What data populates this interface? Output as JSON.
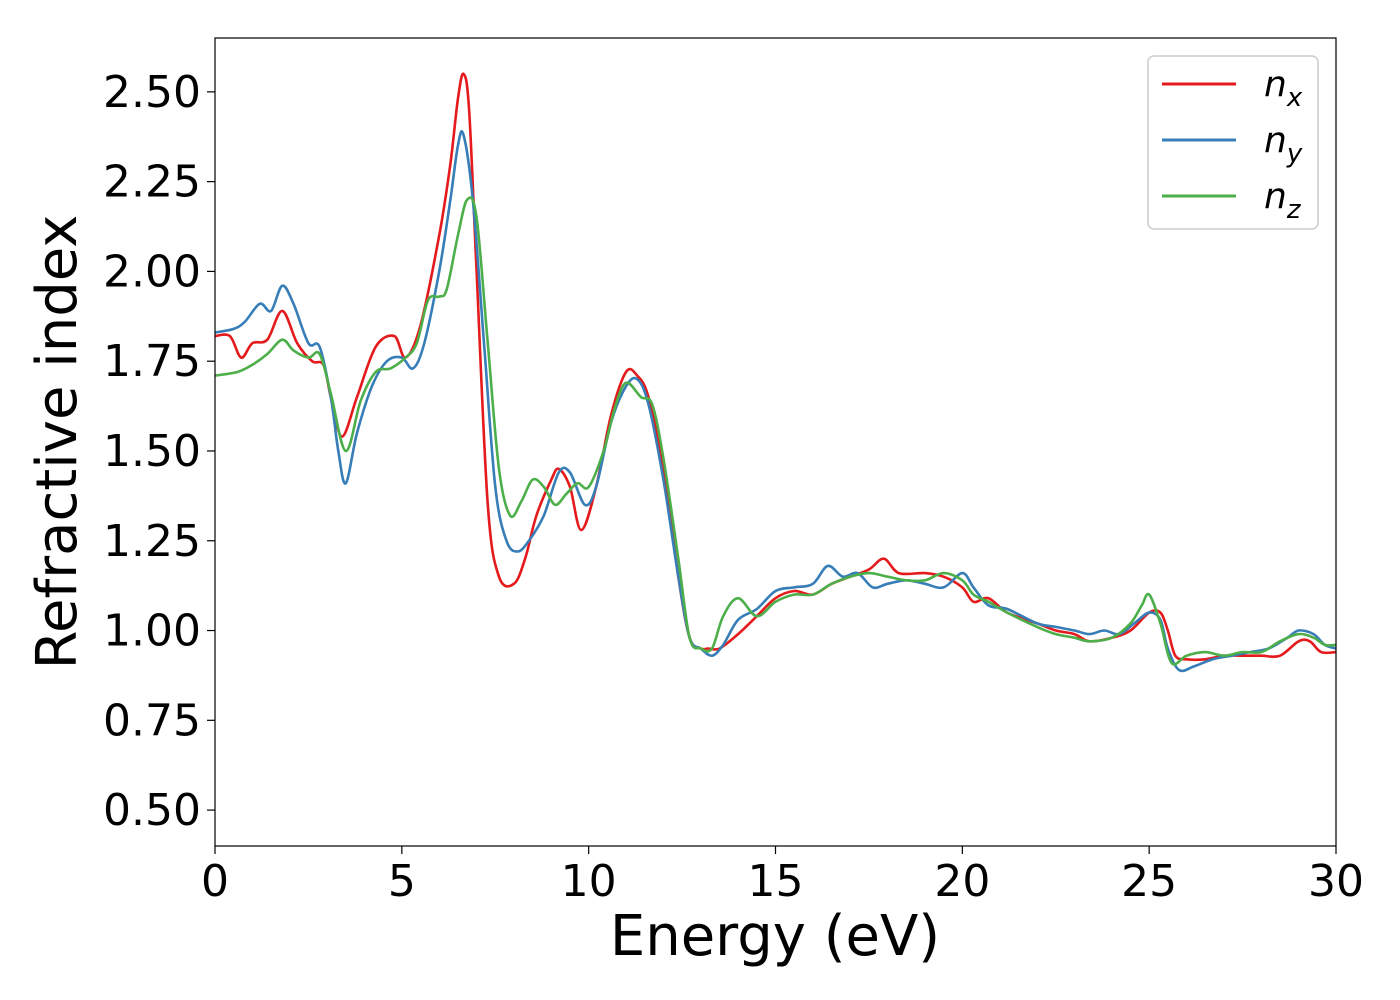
{
  "chart_data": {
    "type": "line",
    "title": "",
    "xlabel": "Energy (eV)",
    "ylabel": "Refractive index",
    "xlim": [
      0,
      30
    ],
    "ylim": [
      0.4,
      2.65
    ],
    "xticks": [
      0,
      5,
      10,
      15,
      20,
      25,
      30
    ],
    "xtick_labels": [
      "0",
      "5",
      "10",
      "15",
      "20",
      "25",
      "30"
    ],
    "yticks": [
      0.5,
      0.75,
      1.0,
      1.25,
      1.5,
      1.75,
      2.0,
      2.25,
      2.5
    ],
    "ytick_labels": [
      "0.50",
      "0.75",
      "1.00",
      "1.25",
      "1.50",
      "1.75",
      "2.00",
      "2.25",
      "2.50"
    ],
    "grid": false,
    "legend_position": "top-right",
    "series": [
      {
        "name": "n",
        "subscript": "x",
        "color": "#e41a1c",
        "x": [
          0,
          0.4,
          0.7,
          1.0,
          1.4,
          1.8,
          2.2,
          2.6,
          2.9,
          3.1,
          3.4,
          3.8,
          4.3,
          4.8,
          5.1,
          5.5,
          6.0,
          6.3,
          6.5,
          6.65,
          6.8,
          7.0,
          7.3,
          7.6,
          8.0,
          8.3,
          8.6,
          9.0,
          9.2,
          9.5,
          9.8,
          10.2,
          10.6,
          11.0,
          11.3,
          11.6,
          12.0,
          12.4,
          12.7,
          13.0,
          13.2,
          13.5,
          14.0,
          14.5,
          15.0,
          15.5,
          16.0,
          16.5,
          17.0,
          17.5,
          17.9,
          18.3,
          19.0,
          19.5,
          20.0,
          20.3,
          20.7,
          21.2,
          22.0,
          22.5,
          23.0,
          23.4,
          24.0,
          24.5,
          25.0,
          25.3,
          25.5,
          25.7,
          26.0,
          26.5,
          27.0,
          27.5,
          28.0,
          28.5,
          29.0,
          29.3,
          29.6,
          30.0
        ],
        "values": [
          1.82,
          1.82,
          1.76,
          1.8,
          1.81,
          1.89,
          1.8,
          1.75,
          1.74,
          1.65,
          1.54,
          1.65,
          1.79,
          1.82,
          1.76,
          1.85,
          2.1,
          2.3,
          2.48,
          2.55,
          2.45,
          2.0,
          1.35,
          1.15,
          1.13,
          1.2,
          1.32,
          1.42,
          1.45,
          1.4,
          1.28,
          1.4,
          1.6,
          1.72,
          1.71,
          1.65,
          1.45,
          1.15,
          0.98,
          0.95,
          0.95,
          0.95,
          0.99,
          1.04,
          1.09,
          1.11,
          1.1,
          1.13,
          1.15,
          1.17,
          1.2,
          1.16,
          1.16,
          1.15,
          1.12,
          1.08,
          1.09,
          1.05,
          1.02,
          1.0,
          0.99,
          0.97,
          0.98,
          1.0,
          1.05,
          1.05,
          1.0,
          0.93,
          0.92,
          0.92,
          0.93,
          0.93,
          0.93,
          0.93,
          0.97,
          0.97,
          0.94,
          0.94
        ]
      },
      {
        "name": "n",
        "subscript": "y",
        "color": "#377eb8",
        "x": [
          0,
          0.5,
          0.8,
          1.2,
          1.5,
          1.8,
          2.1,
          2.5,
          2.8,
          3.1,
          3.3,
          3.5,
          3.8,
          4.2,
          4.6,
          5.0,
          5.3,
          5.6,
          6.0,
          6.3,
          6.5,
          6.65,
          6.9,
          7.2,
          7.5,
          7.8,
          8.1,
          8.4,
          8.8,
          9.2,
          9.5,
          9.9,
          10.2,
          10.6,
          11.0,
          11.3,
          11.6,
          12.0,
          12.4,
          12.7,
          13.0,
          13.3,
          13.6,
          14.0,
          14.5,
          15.0,
          15.5,
          16.0,
          16.4,
          16.8,
          17.2,
          17.6,
          18.0,
          18.5,
          19.0,
          19.5,
          20.0,
          20.3,
          20.7,
          21.2,
          22.0,
          22.5,
          23.0,
          23.4,
          23.8,
          24.2,
          24.6,
          25.0,
          25.3,
          25.5,
          25.8,
          26.2,
          26.7,
          27.2,
          27.7,
          28.2,
          28.7,
          29.0,
          29.4,
          29.7,
          30.0
        ],
        "values": [
          1.83,
          1.84,
          1.86,
          1.91,
          1.89,
          1.96,
          1.91,
          1.8,
          1.79,
          1.65,
          1.5,
          1.41,
          1.55,
          1.68,
          1.75,
          1.76,
          1.73,
          1.8,
          2.0,
          2.2,
          2.35,
          2.38,
          2.2,
          1.8,
          1.4,
          1.25,
          1.22,
          1.25,
          1.32,
          1.44,
          1.44,
          1.35,
          1.4,
          1.58,
          1.68,
          1.7,
          1.63,
          1.42,
          1.15,
          0.98,
          0.95,
          0.93,
          0.96,
          1.03,
          1.06,
          1.11,
          1.12,
          1.13,
          1.18,
          1.15,
          1.16,
          1.12,
          1.13,
          1.14,
          1.13,
          1.12,
          1.16,
          1.12,
          1.07,
          1.06,
          1.02,
          1.01,
          1.0,
          0.99,
          1.0,
          0.99,
          1.02,
          1.05,
          1.03,
          0.95,
          0.89,
          0.9,
          0.92,
          0.93,
          0.94,
          0.95,
          0.98,
          1.0,
          0.99,
          0.96,
          0.95
        ]
      },
      {
        "name": "n",
        "subscript": "z",
        "color": "#4daf4a",
        "x": [
          0,
          0.6,
          1.0,
          1.4,
          1.8,
          2.1,
          2.5,
          2.8,
          3.1,
          3.5,
          3.9,
          4.3,
          4.7,
          5.1,
          5.4,
          5.7,
          6.0,
          6.2,
          6.5,
          6.75,
          7.0,
          7.3,
          7.6,
          7.9,
          8.2,
          8.5,
          8.8,
          9.1,
          9.4,
          9.7,
          10.0,
          10.4,
          10.7,
          11.0,
          11.4,
          11.7,
          12.0,
          12.4,
          12.7,
          13.0,
          13.3,
          13.6,
          14.0,
          14.5,
          15.0,
          15.5,
          16.0,
          16.5,
          17.0,
          17.5,
          18.0,
          18.5,
          19.0,
          19.5,
          20.0,
          20.3,
          20.7,
          21.2,
          22.0,
          22.5,
          23.0,
          23.4,
          24.0,
          24.5,
          24.8,
          25.0,
          25.3,
          25.6,
          26.0,
          26.5,
          27.0,
          27.5,
          28.0,
          28.5,
          29.0,
          29.4,
          29.7,
          30.0
        ],
        "values": [
          1.71,
          1.72,
          1.74,
          1.77,
          1.81,
          1.78,
          1.76,
          1.77,
          1.66,
          1.5,
          1.64,
          1.72,
          1.73,
          1.76,
          1.8,
          1.92,
          1.93,
          1.95,
          2.1,
          2.2,
          2.15,
          1.8,
          1.45,
          1.32,
          1.36,
          1.42,
          1.4,
          1.35,
          1.38,
          1.41,
          1.4,
          1.5,
          1.62,
          1.69,
          1.65,
          1.63,
          1.48,
          1.2,
          0.98,
          0.95,
          0.95,
          1.04,
          1.09,
          1.04,
          1.08,
          1.1,
          1.1,
          1.13,
          1.15,
          1.16,
          1.15,
          1.14,
          1.14,
          1.16,
          1.14,
          1.1,
          1.08,
          1.05,
          1.01,
          0.99,
          0.98,
          0.97,
          0.98,
          1.02,
          1.07,
          1.1,
          1.02,
          0.91,
          0.93,
          0.94,
          0.93,
          0.94,
          0.94,
          0.97,
          0.99,
          0.98,
          0.96,
          0.96
        ]
      }
    ]
  }
}
